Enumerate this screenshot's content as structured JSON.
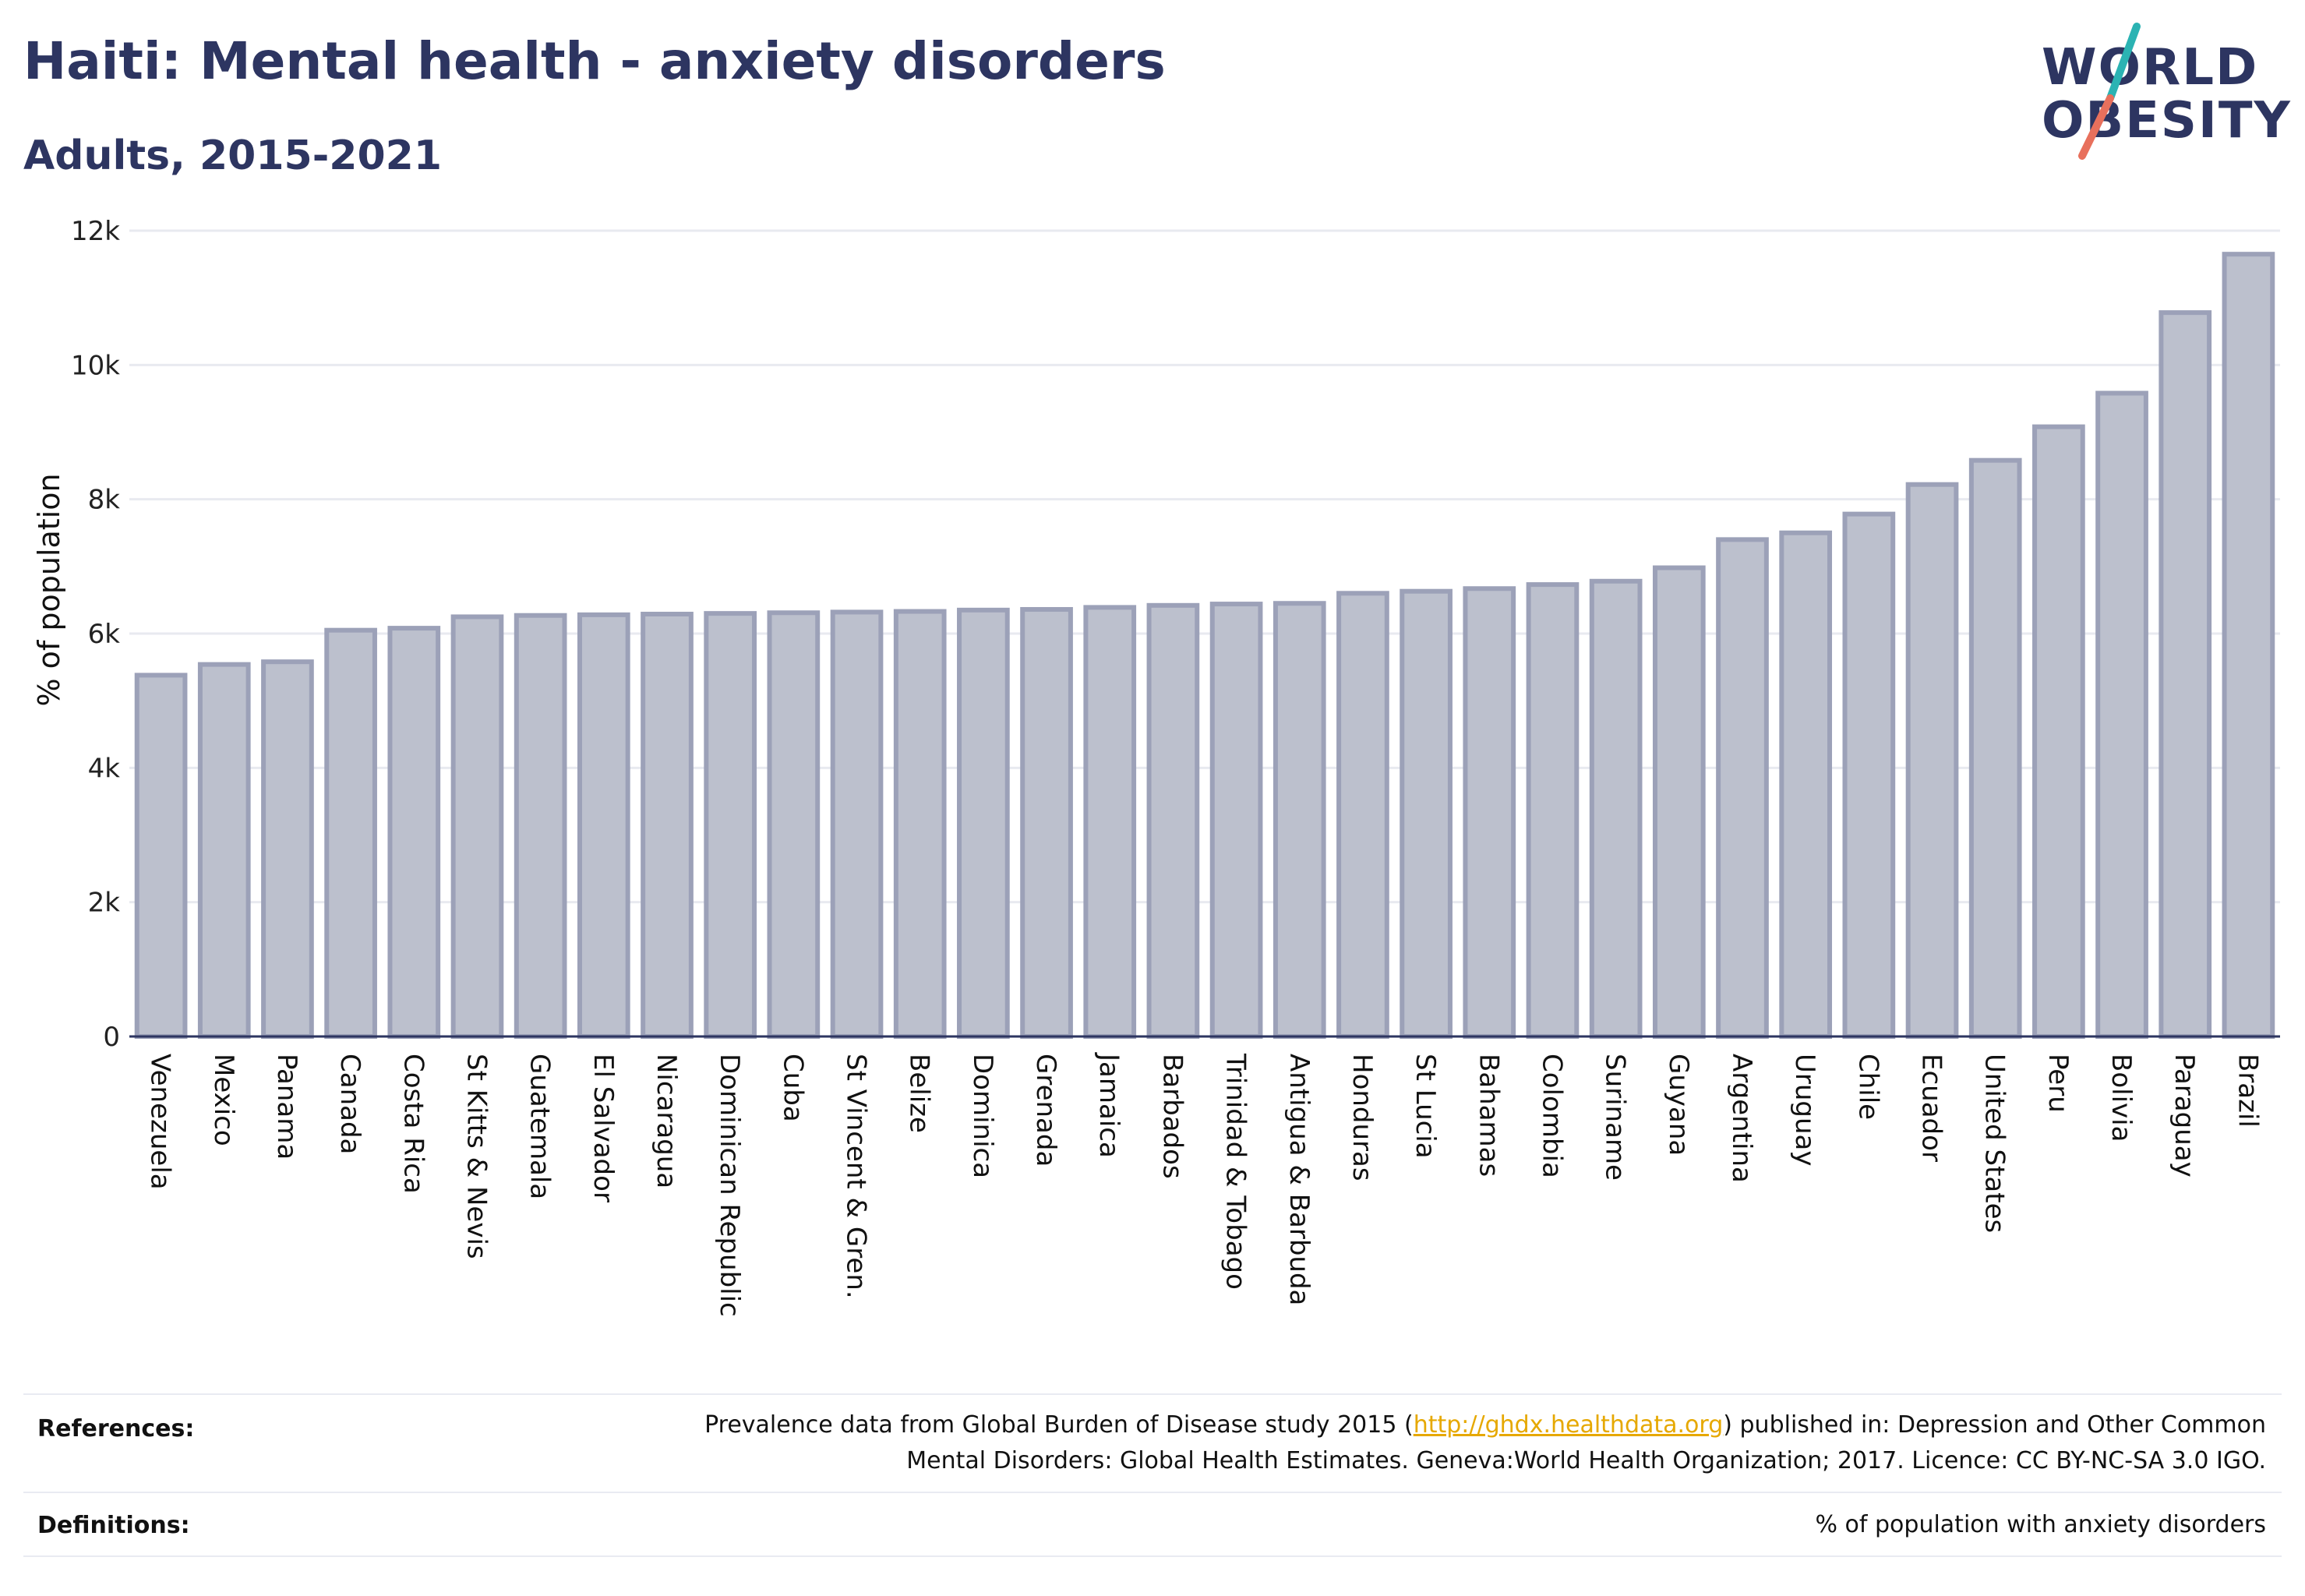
{
  "header": {
    "title": "Haiti: Mental health - anxiety disorders",
    "subtitle": "Adults, 2015-2021"
  },
  "logo": {
    "line1": "WORLD",
    "line2": "OBESITY",
    "slash_colors": [
      "#2bb3b3",
      "#e8705c"
    ]
  },
  "chart_data": {
    "type": "bar",
    "ylabel": "% of population",
    "ylim": [
      0,
      12000
    ],
    "yticks": [
      0,
      2000,
      4000,
      6000,
      8000,
      10000,
      12000
    ],
    "ytick_labels": [
      "0",
      "2k",
      "4k",
      "6k",
      "8k",
      "10k",
      "12k"
    ],
    "grid": true,
    "bar_color": "#bcc0cd",
    "bar_edge_color": "#9ca1b8",
    "categories": [
      "Venezuela",
      "Mexico",
      "Panama",
      "Canada",
      "Costa Rica",
      "St Kitts & Nevis",
      "Guatemala",
      "El Salvador",
      "Nicaragua",
      "Dominican Republic",
      "Cuba",
      "St Vincent & Gren.",
      "Belize",
      "Dominica",
      "Grenada",
      "Jamaica",
      "Barbados",
      "Trinidad & Tobago",
      "Antigua & Barbuda",
      "Honduras",
      "St Lucia",
      "Bahamas",
      "Colombia",
      "Suriname",
      "Guyana",
      "Argentina",
      "Uruguay",
      "Chile",
      "Ecuador",
      "United States",
      "Peru",
      "Bolivia",
      "Paraguay",
      "Brazil"
    ],
    "values": [
      5380,
      5540,
      5580,
      6050,
      6080,
      6250,
      6270,
      6280,
      6290,
      6300,
      6310,
      6320,
      6330,
      6350,
      6360,
      6390,
      6420,
      6440,
      6450,
      6600,
      6630,
      6670,
      6730,
      6780,
      6980,
      7400,
      7500,
      7780,
      8220,
      8580,
      9080,
      9580,
      10780,
      11650
    ]
  },
  "footer": {
    "references_label": "References:",
    "references_line1_pre": "Prevalence data from Global Burden of Disease study 2015 (",
    "references_link": "http://ghdx.healthdata.org",
    "references_line1_post": ") published in: Depression and Other Common",
    "references_line2": "Mental Disorders: Global Health Estimates. Geneva:World Health Organization; 2017. Licence: CC BY-NC-SA 3.0 IGO.",
    "definitions_label": "Definitions:",
    "definitions_text": "% of population with anxiety disorders"
  }
}
